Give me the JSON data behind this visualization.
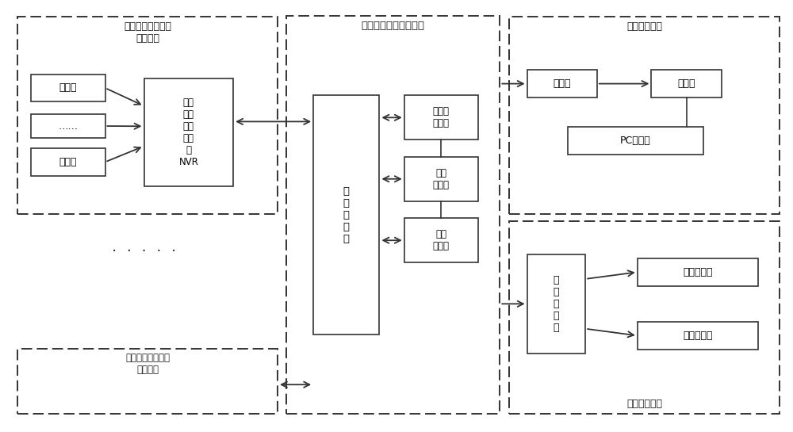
{
  "bg_color": "#ffffff",
  "border_color": "#333333",
  "fig_width": 10.0,
  "fig_height": 5.45,
  "label_left_top": "前端视频采集系统\n（厨房）",
  "label_left_bottom": "前端视频采集系统\n（厨房）",
  "label_middle": "综合管理系统（机房）",
  "label_right_top": "后端监控系统",
  "label_right_bottom": "移动监控系统",
  "label_camera1": "摄像头",
  "label_dots_box": "……",
  "label_camera2": "摄像头",
  "label_nvr": "网络\n数字\n硬盘\n录像\n机\nNVR",
  "label_zongkong": "总\n控\n服\n务\n器",
  "label_liumei": "流媒体\n服务器",
  "label_guanli": "管理\n客户端",
  "label_cunchuo": "存储\n服务器",
  "label_jiemaker": "解码器",
  "label_jianshi": "监视墙",
  "label_pc": "PC客户端",
  "label_wuxian": "无\n线\n接\n入\n网",
  "label_wuxian_client": "无线客户端",
  "label_zhifa": "执法客户端",
  "dots_mid": "·  ·  ·  ·  ·"
}
